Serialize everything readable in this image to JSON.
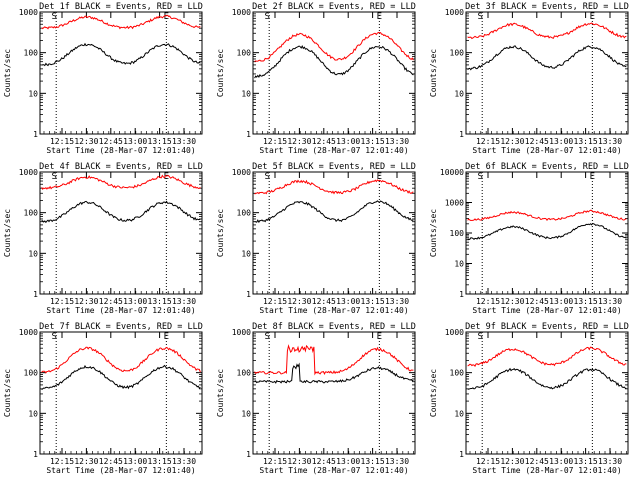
{
  "charts": [
    {
      "title": "Det 1f BLACK = Events, RED = LLD",
      "ylabel": "Counts/sec",
      "xlabel": "Start Time (28-Mar-07 12:01:40)",
      "yticks": [
        "1",
        "10",
        "100",
        "1000"
      ],
      "xticks": [
        "12:15",
        "12:30",
        "12:45",
        "13:00",
        "13:15",
        "13:30"
      ],
      "markers": [
        "S",
        "E"
      ],
      "marker_x": [
        0.1,
        0.78
      ],
      "red": {
        "base": 400,
        "peaks": [
          [
            0.29,
            750
          ],
          [
            0.77,
            780
          ]
        ]
      },
      "black": {
        "base": 50,
        "peaks": [
          [
            0.29,
            160
          ],
          [
            0.77,
            160
          ]
        ]
      }
    },
    {
      "title": "Det 2f BLACK = Events, RED = LLD",
      "ylabel": "Counts/sec",
      "xlabel": "Start Time (28-Mar-07 12:01:40)",
      "yticks": [
        "1",
        "10",
        "100",
        "1000"
      ],
      "xticks": [
        "12:15",
        "12:30",
        "12:45",
        "13:00",
        "13:15",
        "13:30"
      ],
      "markers": [
        "S",
        "E"
      ],
      "marker_x": [
        0.1,
        0.78
      ],
      "red": {
        "base": 60,
        "peaks": [
          [
            0.29,
            280
          ],
          [
            0.77,
            300
          ]
        ]
      },
      "black": {
        "base": 25,
        "peaks": [
          [
            0.29,
            140
          ],
          [
            0.77,
            140
          ]
        ]
      }
    },
    {
      "title": "Det 3f BLACK = Events, RED = LLD",
      "ylabel": "Counts/sec",
      "xlabel": "Start Time (28-Mar-07 12:01:40)",
      "yticks": [
        "1",
        "10",
        "100",
        "1000"
      ],
      "xticks": [
        "12:15",
        "12:30",
        "12:45",
        "13:00",
        "13:15",
        "13:30"
      ],
      "markers": [
        "S",
        "E"
      ],
      "marker_x": [
        0.1,
        0.78
      ],
      "red": {
        "base": 230,
        "peaks": [
          [
            0.29,
            500
          ],
          [
            0.77,
            520
          ]
        ]
      },
      "black": {
        "base": 40,
        "peaks": [
          [
            0.29,
            140
          ],
          [
            0.77,
            140
          ]
        ]
      }
    },
    {
      "title": "Det 4f BLACK = Events, RED = LLD",
      "ylabel": "Counts/sec",
      "xlabel": "Start Time (28-Mar-07 12:01:40)",
      "yticks": [
        "1",
        "10",
        "100",
        "1000"
      ],
      "xticks": [
        "12:15",
        "12:30",
        "12:45",
        "13:00",
        "13:15",
        "13:30"
      ],
      "markers": [
        "S",
        "E"
      ],
      "marker_x": [
        0.1,
        0.78
      ],
      "red": {
        "base": 400,
        "peaks": [
          [
            0.29,
            750
          ],
          [
            0.77,
            780
          ]
        ]
      },
      "black": {
        "base": 60,
        "peaks": [
          [
            0.29,
            180
          ],
          [
            0.77,
            180
          ]
        ]
      }
    },
    {
      "title": "Det 5f BLACK = Events, RED = LLD",
      "ylabel": "Counts/sec",
      "xlabel": "Start Time (28-Mar-07 12:01:40)",
      "yticks": [
        "1",
        "10",
        "100",
        "1000"
      ],
      "xticks": [
        "12:15",
        "12:30",
        "12:45",
        "13:00",
        "13:15",
        "13:30"
      ],
      "markers": [
        "S",
        "E"
      ],
      "marker_x": [
        0.1,
        0.78
      ],
      "red": {
        "base": 300,
        "peaks": [
          [
            0.29,
            600
          ],
          [
            0.77,
            620
          ]
        ]
      },
      "black": {
        "base": 60,
        "peaks": [
          [
            0.29,
            180
          ],
          [
            0.77,
            190
          ]
        ]
      }
    },
    {
      "title": "Det 6f BLACK = Events, RED = LLD",
      "ylabel": "Counts/sec",
      "xlabel": "Start Time (28-Mar-07 12:01:40)",
      "yticks": [
        "1",
        "10",
        "100",
        "1000",
        "10000"
      ],
      "xticks": [
        "12:15",
        "12:30",
        "12:45",
        "13:00",
        "13:15",
        "13:30"
      ],
      "markers": [
        "S",
        "E"
      ],
      "marker_x": [
        0.1,
        0.78
      ],
      "red": {
        "base": 270,
        "peaks": [
          [
            0.29,
            480
          ],
          [
            0.77,
            520
          ]
        ]
      },
      "black": {
        "base": 65,
        "peaks": [
          [
            0.29,
            160
          ],
          [
            0.77,
            200
          ]
        ]
      }
    },
    {
      "title": "Det 7f BLACK = Events, RED = LLD",
      "ylabel": "Counts/sec",
      "xlabel": "Start Time (28-Mar-07 12:01:40)",
      "yticks": [
        "1",
        "10",
        "100",
        "1000"
      ],
      "xticks": [
        "12:15",
        "12:30",
        "12:45",
        "13:00",
        "13:15",
        "13:30"
      ],
      "markers": [
        "S",
        "E"
      ],
      "marker_x": [
        0.1,
        0.78
      ],
      "red": {
        "base": 100,
        "peaks": [
          [
            0.29,
            400
          ],
          [
            0.77,
            400
          ]
        ]
      },
      "black": {
        "base": 40,
        "peaks": [
          [
            0.29,
            140
          ],
          [
            0.77,
            140
          ]
        ]
      }
    },
    {
      "title": "Det 8f BLACK = Events, RED = LLD",
      "ylabel": "Counts/sec",
      "xlabel": "Start Time (28-Mar-07 12:01:40)",
      "yticks": [
        "1",
        "10",
        "100",
        "1000"
      ],
      "xticks": [
        "12:15",
        "12:30",
        "12:45",
        "13:00",
        "13:15",
        "13:30"
      ],
      "markers": [
        "S",
        "E"
      ],
      "marker_x": [
        0.1,
        0.78
      ],
      "red": {
        "base": 100,
        "peaks": [
          [
            0.77,
            380
          ]
        ],
        "plateau": [
          0.21,
          0.38,
          380
        ]
      },
      "black": {
        "base": 60,
        "peaks": [
          [
            0.77,
            130
          ]
        ],
        "plateau": [
          0.24,
          0.29,
          150
        ]
      }
    },
    {
      "title": "Det 9f BLACK = Events, RED = LLD",
      "ylabel": "Counts/sec",
      "xlabel": "Start Time (28-Mar-07 12:01:40)",
      "yticks": [
        "1",
        "10",
        "100",
        "1000"
      ],
      "xticks": [
        "12:15",
        "12:30",
        "12:45",
        "13:00",
        "13:15",
        "13:30"
      ],
      "markers": [
        "S",
        "E"
      ],
      "marker_x": [
        0.1,
        0.78
      ],
      "red": {
        "base": 150,
        "peaks": [
          [
            0.29,
            380
          ],
          [
            0.77,
            400
          ]
        ]
      },
      "black": {
        "base": 40,
        "peaks": [
          [
            0.29,
            120
          ],
          [
            0.77,
            120
          ]
        ]
      }
    }
  ],
  "chart_data": [
    {
      "type": "line",
      "title": "Det 1f BLACK = Events, RED = LLD",
      "ylabel": "Counts/sec",
      "xlabel": "Start Time (28-Mar-07 12:01:40)",
      "yscale": "log",
      "ylim": [
        1,
        1000
      ],
      "x": [
        "12:15",
        "12:30",
        "12:45",
        "13:00",
        "13:15",
        "13:30"
      ],
      "series": [
        {
          "name": "Events",
          "color": "#000000",
          "values": [
            55,
            150,
            55,
            60,
            150,
            60
          ]
        },
        {
          "name": "LLD",
          "color": "#ff0000",
          "values": [
            420,
            720,
            420,
            430,
            760,
            420
          ]
        }
      ]
    },
    {
      "type": "line",
      "title": "Det 2f BLACK = Events, RED = LLD",
      "ylabel": "Counts/sec",
      "xlabel": "Start Time (28-Mar-07 12:01:40)",
      "yscale": "log",
      "ylim": [
        1,
        1000
      ],
      "x": [
        "12:15",
        "12:30",
        "12:45",
        "13:00",
        "13:15",
        "13:30"
      ],
      "series": [
        {
          "name": "Events",
          "color": "#000000",
          "values": [
            30,
            130,
            35,
            40,
            130,
            35
          ]
        },
        {
          "name": "LLD",
          "color": "#ff0000",
          "values": [
            70,
            260,
            80,
            90,
            280,
            80
          ]
        }
      ]
    },
    {
      "type": "line",
      "title": "Det 3f BLACK = Events, RED = LLD",
      "ylabel": "Counts/sec",
      "xlabel": "Start Time (28-Mar-07 12:01:40)",
      "yscale": "log",
      "ylim": [
        1,
        1000
      ],
      "x": [
        "12:15",
        "12:30",
        "12:45",
        "13:00",
        "13:15",
        "13:30"
      ],
      "series": [
        {
          "name": "Events",
          "color": "#000000",
          "values": [
            45,
            130,
            45,
            50,
            130,
            50
          ]
        },
        {
          "name": "LLD",
          "color": "#ff0000",
          "values": [
            240,
            480,
            240,
            250,
            500,
            250
          ]
        }
      ]
    },
    {
      "type": "line",
      "title": "Det 4f BLACK = Events, RED = LLD",
      "ylabel": "Counts/sec",
      "xlabel": "Start Time (28-Mar-07 12:01:40)",
      "yscale": "log",
      "ylim": [
        1,
        1000
      ],
      "x": [
        "12:15",
        "12:30",
        "12:45",
        "13:00",
        "13:15",
        "13:30"
      ],
      "series": [
        {
          "name": "Events",
          "color": "#000000",
          "values": [
            65,
            170,
            65,
            70,
            170,
            70
          ]
        },
        {
          "name": "LLD",
          "color": "#ff0000",
          "values": [
            420,
            720,
            420,
            430,
            760,
            420
          ]
        }
      ]
    },
    {
      "type": "line",
      "title": "Det 5f BLACK = Events, RED = LLD",
      "ylabel": "Counts/sec",
      "xlabel": "Start Time (28-Mar-07 12:01:40)",
      "yscale": "log",
      "ylim": [
        1,
        1000
      ],
      "x": [
        "12:15",
        "12:30",
        "12:45",
        "13:00",
        "13:15",
        "13:30"
      ],
      "series": [
        {
          "name": "Events",
          "color": "#000000",
          "values": [
            65,
            170,
            65,
            70,
            180,
            70
          ]
        },
        {
          "name": "LLD",
          "color": "#ff0000",
          "values": [
            310,
            580,
            310,
            320,
            600,
            320
          ]
        }
      ]
    },
    {
      "type": "line",
      "title": "Det 6f BLACK = Events, RED = LLD",
      "ylabel": "Counts/sec",
      "xlabel": "Start Time (28-Mar-07 12:01:40)",
      "yscale": "log",
      "ylim": [
        1,
        10000
      ],
      "x": [
        "12:15",
        "12:30",
        "12:45",
        "13:00",
        "13:15",
        "13:30"
      ],
      "series": [
        {
          "name": "Events",
          "color": "#000000",
          "values": [
            70,
            150,
            70,
            75,
            190,
            75
          ]
        },
        {
          "name": "LLD",
          "color": "#ff0000",
          "values": [
            280,
            460,
            280,
            290,
            500,
            290
          ]
        }
      ]
    },
    {
      "type": "line",
      "title": "Det 7f BLACK = Events, RED = LLD",
      "ylabel": "Counts/sec",
      "xlabel": "Start Time (28-Mar-07 12:01:40)",
      "yscale": "log",
      "ylim": [
        1,
        1000
      ],
      "x": [
        "12:15",
        "12:30",
        "12:45",
        "13:00",
        "13:15",
        "13:30"
      ],
      "series": [
        {
          "name": "Events",
          "color": "#000000",
          "values": [
            45,
            130,
            45,
            50,
            130,
            50
          ]
        },
        {
          "name": "LLD",
          "color": "#ff0000",
          "values": [
            110,
            380,
            110,
            120,
            380,
            120
          ]
        }
      ]
    },
    {
      "type": "line",
      "title": "Det 8f BLACK = Events, RED = LLD",
      "ylabel": "Counts/sec",
      "xlabel": "Start Time (28-Mar-07 12:01:40)",
      "yscale": "log",
      "ylim": [
        1,
        1000
      ],
      "x": [
        "12:15",
        "12:30",
        "12:45",
        "13:00",
        "13:15",
        "13:30"
      ],
      "series": [
        {
          "name": "Events",
          "color": "#000000",
          "values": [
            65,
            140,
            70,
            70,
            125,
            60
          ]
        },
        {
          "name": "LLD",
          "color": "#ff0000",
          "values": [
            110,
            380,
            110,
            120,
            360,
            110
          ]
        }
      ]
    },
    {
      "type": "line",
      "title": "Det 9f BLACK = Events, RED = LLD",
      "ylabel": "Counts/sec",
      "xlabel": "Start Time (28-Mar-07 12:01:40)",
      "yscale": "log",
      "ylim": [
        1,
        1000
      ],
      "x": [
        "12:15",
        "12:30",
        "12:45",
        "13:00",
        "13:15",
        "13:30"
      ],
      "series": [
        {
          "name": "Events",
          "color": "#000000",
          "values": [
            45,
            115,
            45,
            50,
            115,
            50
          ]
        },
        {
          "name": "LLD",
          "color": "#ff0000",
          "values": [
            160,
            360,
            160,
            170,
            380,
            170
          ]
        }
      ]
    }
  ]
}
